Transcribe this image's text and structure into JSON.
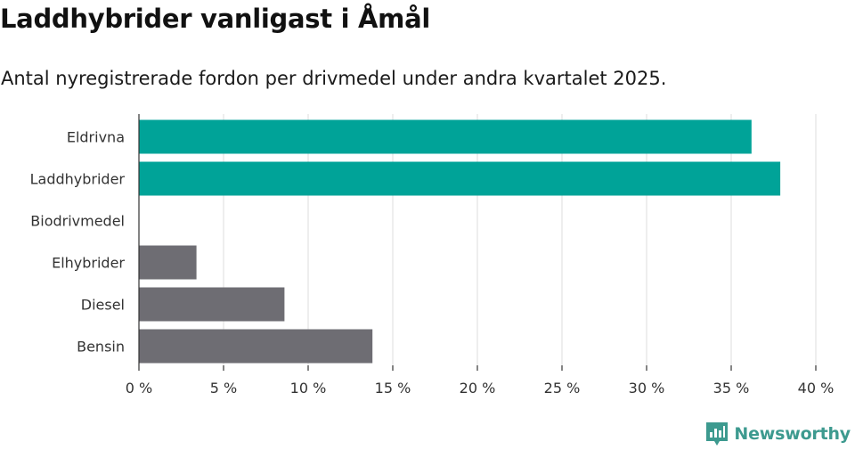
{
  "title": "Laddhybrider vanligast i Åmål",
  "subtitle": "Antal nyregistrerade fordon per drivmedel under andra kvartalet 2025.",
  "brand": {
    "name": "Newsworthy",
    "icon": "newsworthy-logo-icon",
    "color": "#3d9a8f"
  },
  "chart_data": {
    "type": "bar",
    "orientation": "horizontal",
    "categories": [
      "Eldrivna",
      "Laddhybrider",
      "Biodrivmedel",
      "Elhybrider",
      "Diesel",
      "Bensin"
    ],
    "values": [
      36.2,
      37.9,
      0,
      3.4,
      8.6,
      13.8
    ],
    "colors": [
      "#00a398",
      "#00a398",
      "#6e6d73",
      "#6e6d73",
      "#6e6d73",
      "#6e6d73"
    ],
    "xlim": [
      0,
      40
    ],
    "xticks": [
      0,
      5,
      10,
      15,
      20,
      25,
      30,
      35,
      40
    ],
    "xtick_labels": [
      "0 %",
      "5 %",
      "10 %",
      "15 %",
      "20 %",
      "25 %",
      "30 %",
      "35 %",
      "40 %"
    ],
    "grid": true,
    "gridline_color": "#dcdcdc",
    "axis_color": "#333333"
  }
}
